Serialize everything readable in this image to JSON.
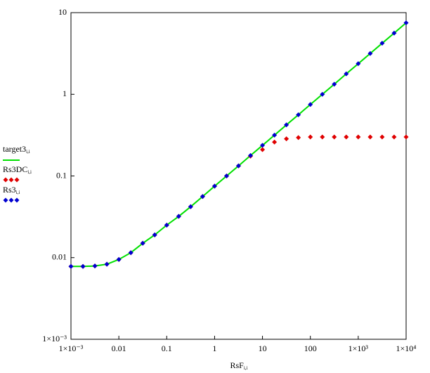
{
  "chart_data": {
    "type": "scatter",
    "x_label": "RsF",
    "x_label_subscript": "i,i",
    "log_x": true,
    "log_y": true,
    "grid": false,
    "xlim": [
      0.001,
      10000
    ],
    "ylim": [
      0.001,
      10
    ],
    "xticks": [
      {
        "value": 0.001,
        "label": "1×10⁻³"
      },
      0.01,
      0.1,
      1,
      10,
      100,
      {
        "value": 1000,
        "label": "1×10³"
      },
      {
        "value": 10000,
        "label": "1×10⁴"
      }
    ],
    "yticks": [
      {
        "value": 0.001,
        "label": "1×10⁻³"
      },
      0.01,
      0.1,
      1,
      10
    ],
    "x": [
      0.001,
      0.00178,
      0.00316,
      0.00562,
      0.01,
      0.0178,
      0.0316,
      0.0562,
      0.1,
      0.178,
      0.316,
      0.562,
      1,
      1.78,
      3.16,
      5.62,
      10,
      17.8,
      31.6,
      56.2,
      100,
      178,
      316,
      562,
      1000,
      1780,
      3160,
      5620,
      10000
    ],
    "series": [
      {
        "name": "target3",
        "subscript": "i,i",
        "style": "line",
        "color": "#00e000",
        "values": [
          0.0078,
          0.0078,
          0.0079,
          0.0083,
          0.0095,
          0.0115,
          0.015,
          0.019,
          0.025,
          0.032,
          0.042,
          0.056,
          0.075,
          0.1,
          0.133,
          0.178,
          0.237,
          0.316,
          0.422,
          0.562,
          0.75,
          1.0,
          1.33,
          1.78,
          2.37,
          3.16,
          4.22,
          5.62,
          7.5
        ]
      },
      {
        "name": "Rs3DC",
        "subscript": "i,i",
        "style": "diamond",
        "color": "#e00000",
        "values": [
          0.0078,
          0.0078,
          0.0079,
          0.0083,
          0.0095,
          0.0115,
          0.015,
          0.019,
          0.025,
          0.032,
          0.042,
          0.056,
          0.075,
          0.1,
          0.133,
          0.175,
          0.21,
          0.26,
          0.285,
          0.295,
          0.3,
          0.3,
          0.3,
          0.3,
          0.3,
          0.3,
          0.3,
          0.3,
          0.3
        ]
      },
      {
        "name": "Rs3",
        "subscript": "i,i",
        "style": "diamond",
        "color": "#0000d0",
        "values": [
          0.0078,
          0.0078,
          0.0079,
          0.0083,
          0.0095,
          0.0115,
          0.015,
          0.019,
          0.025,
          0.032,
          0.042,
          0.056,
          0.075,
          0.1,
          0.133,
          0.178,
          0.237,
          0.316,
          0.422,
          0.562,
          0.75,
          1.0,
          1.33,
          1.78,
          2.37,
          3.16,
          4.22,
          5.62,
          7.5
        ]
      }
    ]
  }
}
